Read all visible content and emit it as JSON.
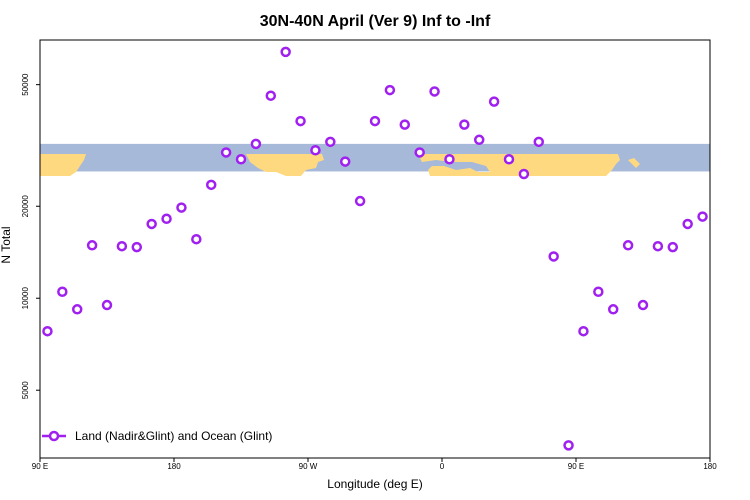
{
  "chart_data": {
    "type": "scatter",
    "title": "30N-40N April (Ver 9)   Inf to -Inf",
    "xlabel": "Longitude (deg E)",
    "ylabel": "N Total",
    "xlim": [
      90,
      540
    ],
    "ylim_log": [
      3000,
      70000
    ],
    "x_ticks": [
      {
        "value": 90,
        "label": "90 E"
      },
      {
        "value": 180,
        "label": "180"
      },
      {
        "value": 270,
        "label": "90 W"
      },
      {
        "value": 360,
        "label": "0"
      },
      {
        "value": 450,
        "label": "90 E"
      },
      {
        "value": 540,
        "label": "180"
      }
    ],
    "y_ticks": [
      {
        "value": 5000,
        "label": "5000"
      },
      {
        "value": 10000,
        "label": "10000"
      },
      {
        "value": 20000,
        "label": "20000"
      },
      {
        "value": 50000,
        "label": "50000"
      }
    ],
    "map_strip": {
      "lat_range": "30N-40N",
      "land_color": "#FFD980",
      "ocean_color": "#A6B9D9",
      "y_range": [
        26000,
        32000
      ]
    },
    "series": [
      {
        "name": "Land (Nadir&Glint) and Ocean (Glint)",
        "color": "#A020F0",
        "marker": "open-circle",
        "x": [
          95,
          105,
          115,
          125,
          135,
          145,
          155,
          165,
          175,
          185,
          195,
          205,
          215,
          225,
          235,
          245,
          255,
          265,
          275,
          285,
          295,
          305,
          315,
          325,
          335,
          345,
          355,
          365,
          375,
          385,
          395,
          405,
          415,
          425,
          435,
          445,
          455,
          465,
          475,
          485,
          495,
          505,
          515,
          525,
          535
        ],
        "y": [
          7800,
          10500,
          9200,
          14900,
          9500,
          14800,
          14700,
          17500,
          18200,
          19800,
          15600,
          23500,
          30000,
          28500,
          32000,
          46000,
          64000,
          38000,
          30500,
          32500,
          28000,
          20800,
          38000,
          48000,
          37000,
          30000,
          47500,
          28500,
          37000,
          33000,
          44000,
          28500,
          25500,
          32500,
          13700,
          3300,
          7800,
          10500,
          9200,
          14900,
          9500,
          14800,
          14700,
          17500,
          18500
        ]
      }
    ]
  }
}
